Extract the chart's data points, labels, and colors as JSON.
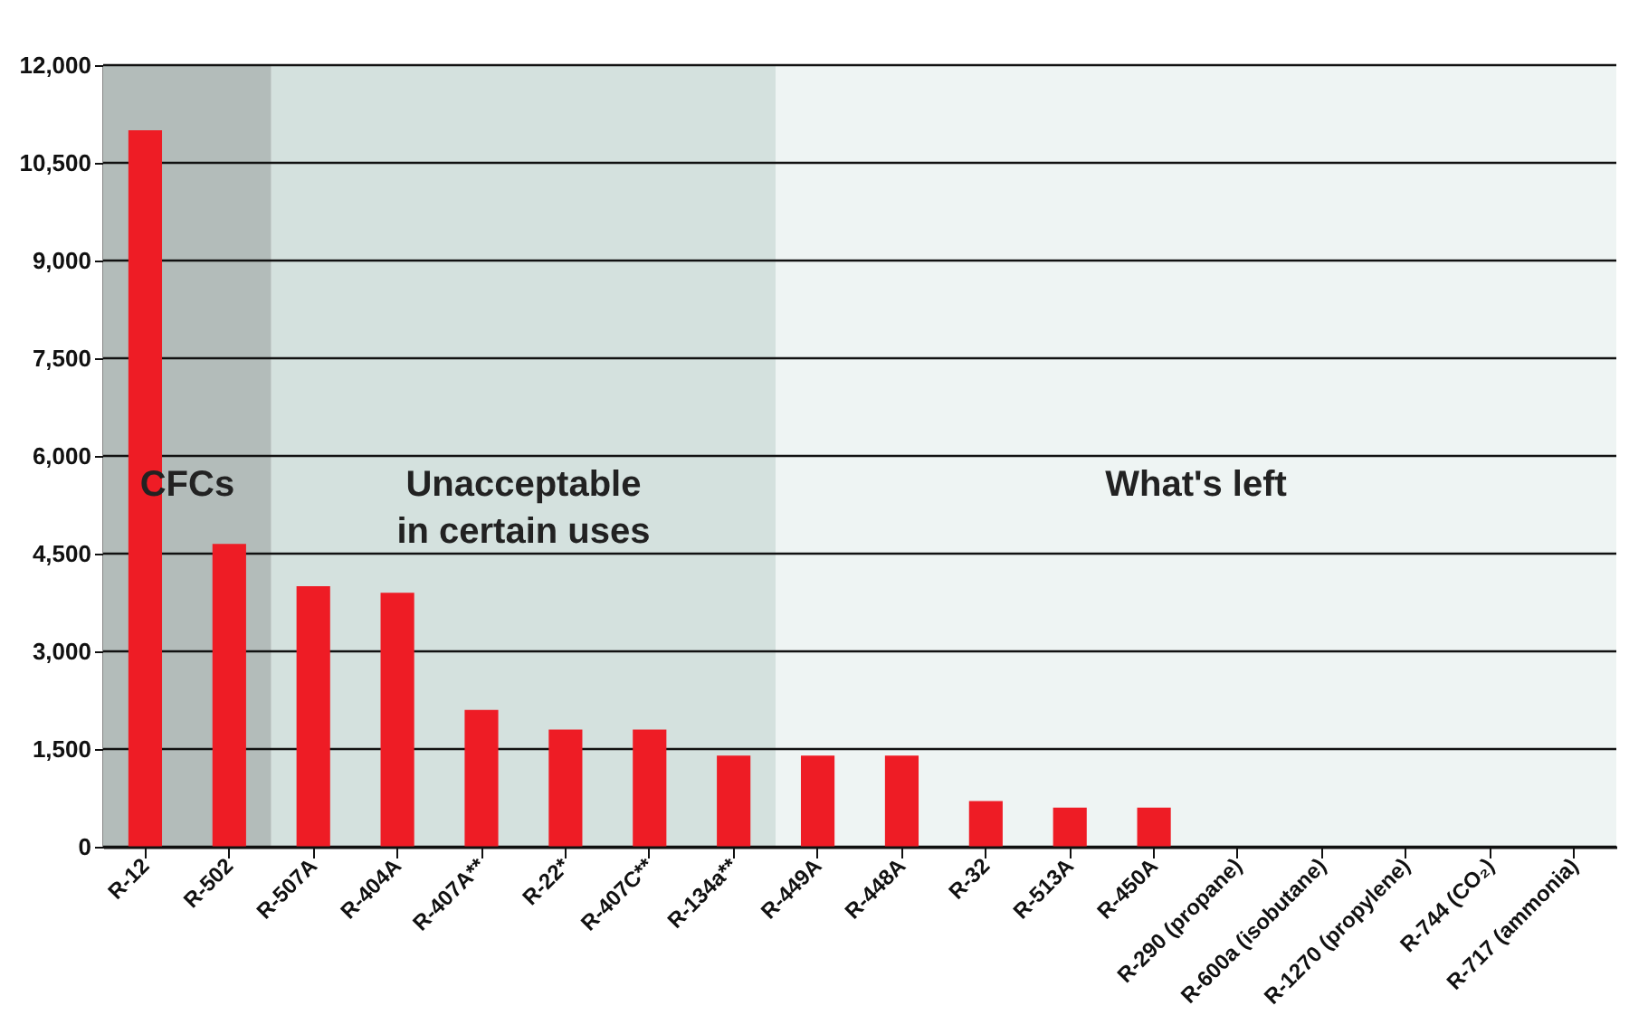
{
  "chart_data": {
    "type": "bar",
    "categories": [
      "R-12",
      "R-502",
      "R-507A",
      "R-404A",
      "R-407A**",
      "R-22*",
      "R-407C**",
      "R-134a**",
      "R-449A",
      "R-448A",
      "R-32",
      "R-513A",
      "R-450A",
      "R-290 (propane)",
      "R-600a (isobutane)",
      "R-1270 (propylene)",
      "R-744 (CO₂)",
      "R-717 (ammonia)"
    ],
    "values": [
      11000,
      4650,
      4000,
      3900,
      2100,
      1800,
      1800,
      1400,
      1400,
      1400,
      700,
      600,
      600,
      0,
      0,
      0,
      0,
      0
    ],
    "color": "#ee1c25",
    "ylim": [
      0,
      12000
    ],
    "yticks": [
      {
        "value": 0,
        "label": "0"
      },
      {
        "value": 1500,
        "label": "1,500"
      },
      {
        "value": 3000,
        "label": "3,000"
      },
      {
        "value": 4500,
        "label": "4,500"
      },
      {
        "value": 6000,
        "label": "6,000"
      },
      {
        "value": 7500,
        "label": "7,500"
      },
      {
        "value": 9000,
        "label": "9,000"
      },
      {
        "value": 10500,
        "label": "10,500"
      },
      {
        "value": 12000,
        "label": "12,000"
      }
    ],
    "grid": "y",
    "bands": [
      {
        "axis": "x",
        "from": "R-12",
        "to": "R-502",
        "label": "CFCs",
        "color": "#b3bcba"
      },
      {
        "axis": "x",
        "from": "R-507A",
        "to": "R-134a**",
        "label": "Unacceptable\nin certain uses",
        "color": "#d4e1de"
      },
      {
        "axis": "x",
        "from": "R-449A",
        "to": "R-717 (ammonia)",
        "label": "What's left",
        "color": "#eef4f3"
      }
    ]
  }
}
